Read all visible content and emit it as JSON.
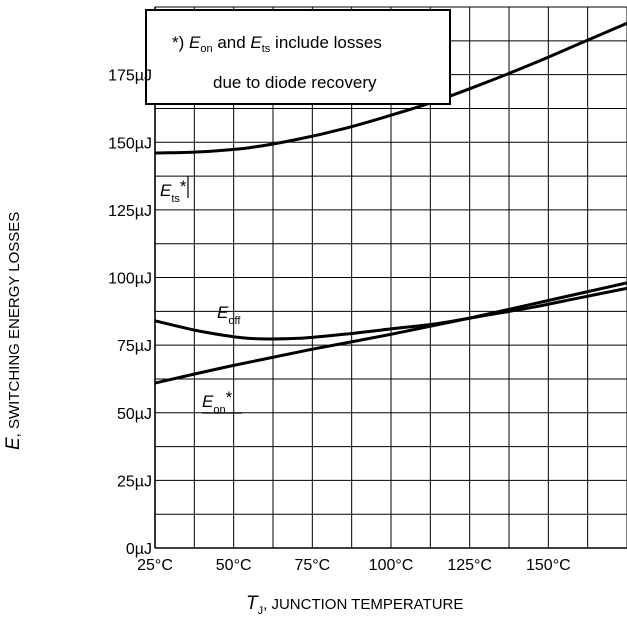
{
  "chart_data": {
    "type": "line",
    "xlabel": {
      "symbol": "T",
      "subscript": "J",
      "rest": ", JUNCTION TEMPERATURE"
    },
    "ylabel": {
      "symbol": "E",
      "rest": ", SWITCHING ENERGY LOSSES"
    },
    "x_ticks": [
      "25°C",
      "50°C",
      "75°C",
      "100°C",
      "125°C",
      "150°C"
    ],
    "y_ticks": [
      "0µJ",
      "25µJ",
      "50µJ",
      "75µJ",
      "100µJ",
      "125µJ",
      "150µJ",
      "175µJ"
    ],
    "xlim": [
      25,
      175
    ],
    "ylim": [
      0,
      200
    ],
    "grid": true,
    "annotation": {
      "line1_prefix": "*) ",
      "on_symbol": "E",
      "on_sub": "on",
      "line1_mid": " and ",
      "ts_symbol": "E",
      "ts_sub": "ts",
      "line1_suffix": " include losses",
      "line2": "due to diode recovery"
    },
    "series": [
      {
        "label_symbol": "E",
        "label_sub": "ts",
        "label_suffix": "*",
        "x": [
          25,
          40,
          55,
          70,
          85,
          100,
          115,
          130,
          145,
          160,
          175
        ],
        "y": [
          146,
          146.5,
          148,
          151,
          155,
          160,
          165.5,
          172,
          179,
          186.5,
          194
        ]
      },
      {
        "label_symbol": "E",
        "label_sub": "off",
        "label_suffix": "",
        "x": [
          25,
          40,
          55,
          70,
          85,
          100,
          115,
          130,
          145,
          160,
          175
        ],
        "y": [
          84,
          80,
          77.5,
          77.5,
          79,
          81,
          83,
          86,
          89,
          92.5,
          96
        ]
      },
      {
        "label_symbol": "E",
        "label_sub": "on",
        "label_suffix": "*",
        "x": [
          25,
          50,
          75,
          100,
          125,
          150,
          175
        ],
        "y": [
          61,
          67.5,
          73.5,
          79,
          85,
          91.5,
          98
        ]
      }
    ]
  }
}
